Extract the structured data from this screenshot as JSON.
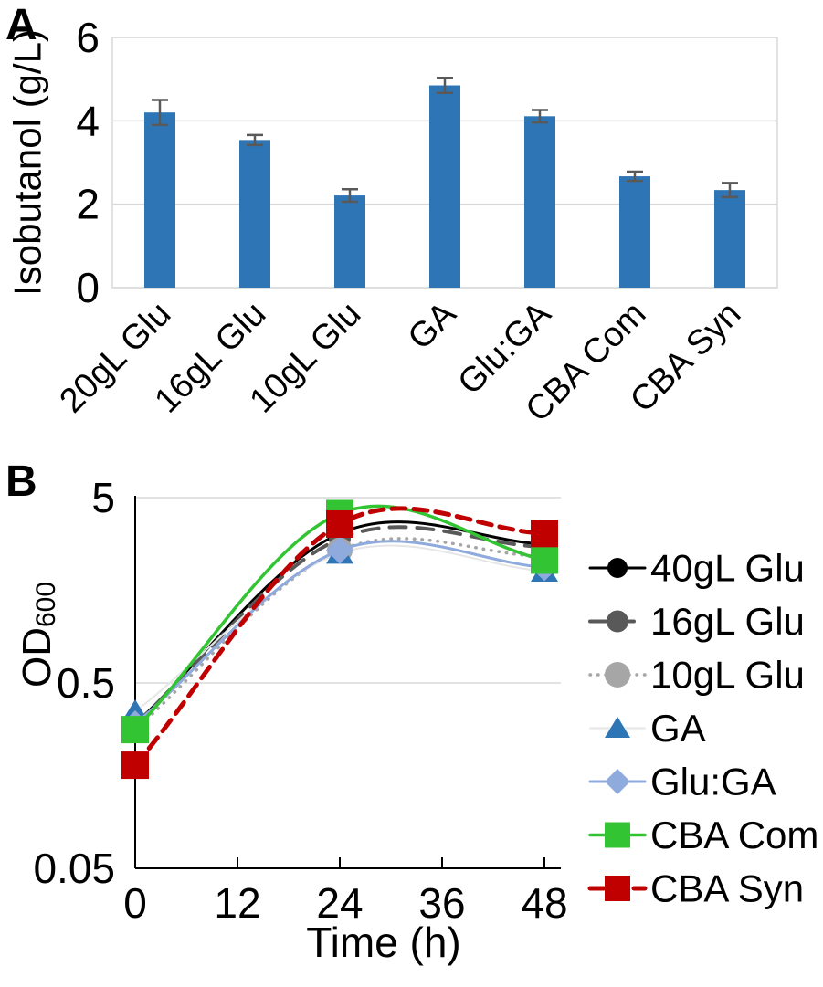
{
  "figure": {
    "panels": [
      {
        "letter": "A"
      },
      {
        "letter": "B"
      }
    ]
  },
  "chart_data": [
    {
      "type": "bar",
      "panel": "A",
      "title": "",
      "xlabel": "",
      "ylabel": "Isobutanol (g/L)",
      "categories": [
        "20gL Glu",
        "16gL Glu",
        "10gL Glu",
        "GA",
        "Glu:GA",
        "CBA Com",
        "CBA Syn"
      ],
      "values": [
        4.2,
        3.54,
        2.21,
        4.85,
        4.11,
        2.67,
        2.34
      ],
      "errors": [
        0.3,
        0.12,
        0.15,
        0.18,
        0.15,
        0.11,
        0.17
      ],
      "ylim": [
        0,
        6
      ],
      "yticks": [
        0,
        2,
        4,
        6
      ],
      "grid": true,
      "bar_color": "#2E75B6",
      "error_color": "#595959",
      "gridline_color": "#D9D9D9"
    },
    {
      "type": "line",
      "panel": "B",
      "title": "",
      "xlabel": "Time (h)",
      "ylabel_main": "OD",
      "ylabel_sub": "600",
      "y_scale": "log",
      "ylim": [
        0.05,
        5
      ],
      "yticks": [
        5,
        0.5,
        0.05
      ],
      "ytick_labels": [
        "5",
        "0.5",
        "0.05"
      ],
      "x": [
        0,
        24,
        48
      ],
      "xticks": [
        0,
        12,
        24,
        36,
        48
      ],
      "xlim": [
        0,
        48
      ],
      "smooth": true,
      "grid": true,
      "gridline_color": "#D9D9D9",
      "axis_color": "#000000",
      "legend_position": "right",
      "series": [
        {
          "name": "40gL Glu",
          "values": [
            0.3,
            3.2,
            2.8
          ],
          "color": "#000000",
          "line_color": "#000000",
          "line": "solid",
          "line_width": 3,
          "marker": "circle",
          "marker_size": 22
        },
        {
          "name": "16gL Glu",
          "values": [
            0.3,
            3.0,
            2.7
          ],
          "color": "#595959",
          "line_color": "#595959",
          "line": "dash",
          "line_width": 4,
          "marker": "circle",
          "marker_size": 24
        },
        {
          "name": "10gL Glu",
          "values": [
            0.28,
            2.6,
            2.4
          ],
          "color": "#A6A6A6",
          "line_color": "#A6A6A6",
          "line": "dot",
          "line_width": 3.5,
          "marker": "circle",
          "marker_size": 28
        },
        {
          "name": "GA",
          "values": [
            0.35,
            2.5,
            2.0
          ],
          "color": "#2E75B6",
          "line_color": "#E7E6E6",
          "line": "solid",
          "line_width": 2,
          "marker": "triangle",
          "marker_size": 30
        },
        {
          "name": "Glu:GA",
          "values": [
            0.3,
            2.6,
            2.1
          ],
          "color": "#8FAADC",
          "line_color": "#8FAADC",
          "line": "solid",
          "line_width": 3,
          "marker": "diamond",
          "marker_size": 30
        },
        {
          "name": "CBA Com",
          "values": [
            0.28,
            4.1,
            2.3
          ],
          "color": "#33C433",
          "line_color": "#33C433",
          "line": "solid",
          "line_width": 3.5,
          "marker": "square",
          "marker_size": 30
        },
        {
          "name": "CBA Syn",
          "values": [
            0.18,
            3.6,
            3.2
          ],
          "color": "#C00000",
          "line_color": "#C00000",
          "line": "dash",
          "line_width": 5,
          "marker": "square",
          "marker_size": 30
        }
      ]
    }
  ]
}
